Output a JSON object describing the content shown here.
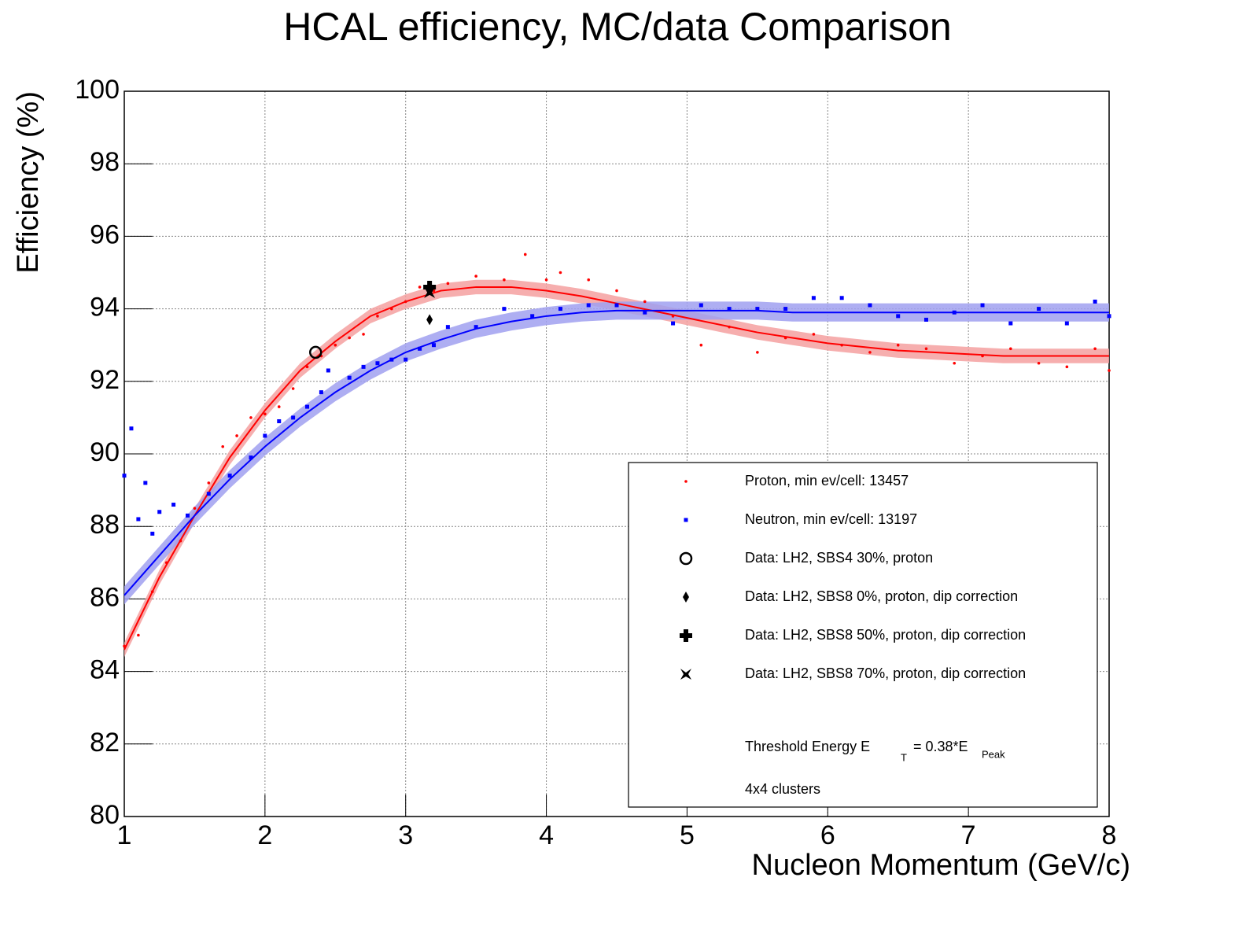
{
  "chart_data": {
    "type": "scatter",
    "title": "HCAL efficiency, MC/data Comparison",
    "x_label": "Nucleon Momentum (GeV/c)",
    "y_label": "Efficiency (%)",
    "xlim": [
      1,
      8
    ],
    "ylim": [
      80,
      100
    ],
    "xticks": [
      1,
      2,
      3,
      4,
      5,
      6,
      7,
      8
    ],
    "yticks": [
      80,
      82,
      84,
      86,
      88,
      90,
      92,
      94,
      96,
      98,
      100
    ],
    "grid": true,
    "legend": "bottom-right",
    "series": [
      {
        "name": "Proton, min ev/cell: 13457",
        "color": "#ff0000",
        "marker": "dot",
        "x": [
          1.0,
          1.1,
          1.2,
          1.3,
          1.4,
          1.5,
          1.6,
          1.7,
          1.8,
          1.9,
          2.0,
          2.1,
          2.2,
          2.3,
          2.4,
          2.5,
          2.6,
          2.7,
          2.8,
          2.9,
          3.0,
          3.1,
          3.2,
          3.3,
          3.5,
          3.7,
          3.85,
          4.0,
          4.1,
          4.3,
          4.5,
          4.7,
          4.9,
          5.1,
          5.3,
          5.5,
          5.7,
          5.9,
          6.1,
          6.3,
          6.5,
          6.7,
          6.9,
          7.1,
          7.3,
          7.5,
          7.7,
          7.9,
          8.0
        ],
        "values": [
          84.7,
          85.0,
          86.2,
          87.0,
          87.6,
          88.5,
          89.2,
          90.2,
          90.5,
          91.0,
          91.1,
          91.3,
          91.8,
          92.4,
          92.7,
          93.0,
          93.2,
          93.3,
          93.8,
          94.0,
          94.2,
          94.6,
          94.5,
          94.7,
          94.9,
          94.8,
          95.5,
          94.8,
          95.0,
          94.8,
          94.5,
          94.2,
          93.8,
          93.0,
          93.5,
          92.8,
          93.2,
          93.3,
          93.0,
          92.8,
          93.0,
          92.9,
          92.5,
          92.7,
          92.9,
          92.5,
          92.4,
          92.9,
          92.3
        ]
      },
      {
        "name": "Neutron, min ev/cell: 13197",
        "color": "#0000ff",
        "marker": "square",
        "x": [
          1.0,
          1.05,
          1.1,
          1.15,
          1.2,
          1.25,
          1.35,
          1.45,
          1.6,
          1.75,
          1.9,
          2.0,
          2.1,
          2.2,
          2.3,
          2.4,
          2.45,
          2.6,
          2.7,
          2.8,
          2.9,
          3.0,
          3.1,
          3.2,
          3.3,
          3.5,
          3.7,
          3.9,
          4.1,
          4.3,
          4.5,
          4.7,
          4.9,
          5.1,
          5.3,
          5.5,
          5.7,
          5.9,
          6.1,
          6.3,
          6.5,
          6.7,
          6.9,
          7.1,
          7.3,
          7.5,
          7.7,
          7.9,
          8.0
        ],
        "values": [
          89.4,
          90.7,
          88.2,
          89.2,
          87.8,
          88.4,
          88.6,
          88.3,
          88.9,
          89.4,
          89.9,
          90.5,
          90.9,
          91.0,
          91.3,
          91.7,
          92.3,
          92.1,
          92.4,
          92.5,
          92.6,
          92.6,
          92.9,
          93.0,
          93.5,
          93.5,
          94.0,
          93.8,
          94.0,
          94.1,
          94.1,
          93.9,
          93.6,
          94.1,
          94.0,
          94.0,
          94.0,
          94.3,
          94.3,
          94.1,
          93.8,
          93.7,
          93.9,
          94.1,
          93.6,
          94.0,
          93.6,
          94.2,
          93.8
        ]
      },
      {
        "name": "Data: LH2, SBS4 30%, proton",
        "color": "#000000",
        "marker": "circle",
        "x": [
          2.36
        ],
        "values": [
          92.8
        ]
      },
      {
        "name": "Data: LH2, SBS8 0%, proton, dip correction",
        "color": "#000000",
        "marker": "diamond",
        "x": [
          3.17
        ],
        "values": [
          93.7
        ]
      },
      {
        "name": "Data: LH2, SBS8 50%, proton, dip correction",
        "color": "#000000",
        "marker": "cross",
        "x": [
          3.17
        ],
        "values": [
          94.6
        ]
      },
      {
        "name": "Data: LH2, SBS8 70%, proton, dip correction",
        "color": "#000000",
        "marker": "star",
        "x": [
          3.17
        ],
        "values": [
          94.45
        ]
      }
    ],
    "fits": [
      {
        "color": "#ff0000",
        "band_color": "#f5a0a0",
        "band": 0.2,
        "x": [
          1,
          1.25,
          1.5,
          1.75,
          2,
          2.25,
          2.5,
          2.75,
          3,
          3.25,
          3.5,
          3.75,
          4,
          4.25,
          4.5,
          4.75,
          5,
          5.25,
          5.5,
          5.75,
          6,
          6.25,
          6.5,
          6.75,
          7,
          7.25,
          7.5,
          7.75,
          8
        ],
        "values": [
          84.6,
          86.6,
          88.3,
          89.9,
          91.2,
          92.3,
          93.1,
          93.8,
          94.2,
          94.5,
          94.6,
          94.6,
          94.5,
          94.35,
          94.15,
          93.95,
          93.75,
          93.55,
          93.35,
          93.2,
          93.05,
          92.95,
          92.85,
          92.8,
          92.75,
          92.7,
          92.7,
          92.7,
          92.7
        ]
      },
      {
        "color": "#0000ff",
        "band_color": "#a0a0f0",
        "band": 0.25,
        "x": [
          1,
          1.25,
          1.5,
          1.75,
          2,
          2.25,
          2.5,
          2.75,
          3,
          3.25,
          3.5,
          3.75,
          4,
          4.25,
          4.5,
          4.75,
          5,
          5.25,
          5.5,
          5.75,
          6,
          6.25,
          6.5,
          6.75,
          7,
          7.25,
          7.5,
          7.75,
          8
        ],
        "values": [
          86.1,
          87.2,
          88.3,
          89.3,
          90.2,
          91.0,
          91.7,
          92.3,
          92.8,
          93.15,
          93.45,
          93.65,
          93.8,
          93.9,
          93.95,
          93.95,
          93.95,
          93.95,
          93.95,
          93.9,
          93.9,
          93.9,
          93.9,
          93.9,
          93.9,
          93.9,
          93.9,
          93.9,
          93.9
        ]
      }
    ],
    "annotations": [
      "Threshold Energy E",
      "T",
      "= 0.38*E",
      "Peak",
      "4x4 clusters"
    ]
  }
}
